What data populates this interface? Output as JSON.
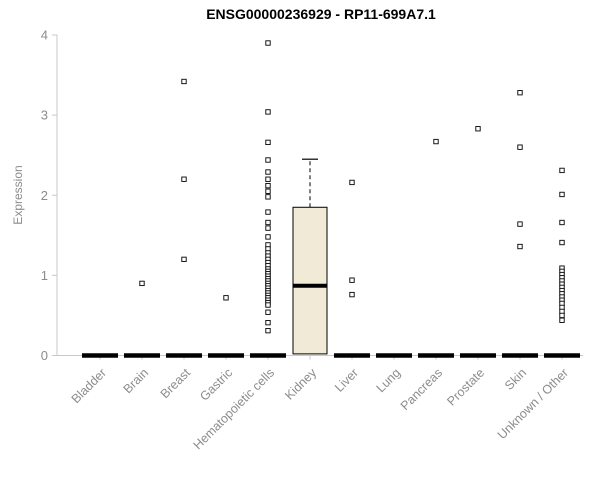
{
  "chart_data": {
    "type": "boxplot",
    "title": "ENSG00000236929 - RP11-699A7.1",
    "ylabel": "Expression",
    "xlabel": "",
    "ylim": [
      0,
      4
    ],
    "yticks": [
      0,
      1,
      2,
      3,
      4
    ],
    "grid": false,
    "legend": "none",
    "categories": [
      "Bladder",
      "Brain",
      "Breast",
      "Gastric",
      "Hematopoietic cells",
      "Kidney",
      "Liver",
      "Lung",
      "Pancreas",
      "Prostate",
      "Skin",
      "Unknown / Other"
    ],
    "boxes": [
      {
        "category": "Bladder",
        "q1": 0,
        "median": 0,
        "q3": 0,
        "whisker_low": 0,
        "whisker_high": 0,
        "outliers": []
      },
      {
        "category": "Brain",
        "q1": 0,
        "median": 0,
        "q3": 0,
        "whisker_low": 0,
        "whisker_high": 0,
        "outliers": [
          0.9
        ]
      },
      {
        "category": "Breast",
        "q1": 0,
        "median": 0,
        "q3": 0,
        "whisker_low": 0,
        "whisker_high": 0,
        "outliers": [
          3.42,
          2.2,
          1.2
        ]
      },
      {
        "category": "Gastric",
        "q1": 0,
        "median": 0,
        "q3": 0,
        "whisker_low": 0,
        "whisker_high": 0,
        "outliers": [
          0.72
        ]
      },
      {
        "category": "Hematopoietic cells",
        "q1": 0,
        "median": 0,
        "q3": 0,
        "whisker_low": 0,
        "whisker_high": 0,
        "outliers": [
          3.9,
          3.04,
          2.66,
          2.44,
          2.29,
          2.2,
          2.12,
          2.05,
          1.98,
          1.79,
          1.66,
          1.59,
          1.48,
          1.38,
          1.33,
          1.28,
          1.24,
          1.2,
          1.16,
          1.12,
          1.08,
          1.05,
          1.02,
          0.99,
          0.96,
          0.93,
          0.9,
          0.87,
          0.84,
          0.81,
          0.78,
          0.75,
          0.72,
          0.69,
          0.66,
          0.63,
          0.54,
          0.41,
          0.31
        ]
      },
      {
        "category": "Kidney",
        "q1": 0.02,
        "median": 0.87,
        "q3": 1.85,
        "whisker_low": 0.02,
        "whisker_high": 2.45,
        "outliers": []
      },
      {
        "category": "Liver",
        "q1": 0,
        "median": 0,
        "q3": 0,
        "whisker_low": 0,
        "whisker_high": 0,
        "outliers": [
          2.16,
          0.94,
          0.76
        ]
      },
      {
        "category": "Lung",
        "q1": 0,
        "median": 0,
        "q3": 0,
        "whisker_low": 0,
        "whisker_high": 0,
        "outliers": []
      },
      {
        "category": "Pancreas",
        "q1": 0,
        "median": 0,
        "q3": 0,
        "whisker_low": 0,
        "whisker_high": 0,
        "outliers": [
          2.67
        ]
      },
      {
        "category": "Prostate",
        "q1": 0,
        "median": 0,
        "q3": 0,
        "whisker_low": 0,
        "whisker_high": 0,
        "outliers": [
          2.83
        ]
      },
      {
        "category": "Skin",
        "q1": 0,
        "median": 0,
        "q3": 0,
        "whisker_low": 0,
        "whisker_high": 0,
        "outliers": [
          3.28,
          2.6,
          1.64,
          1.36
        ]
      },
      {
        "category": "Unknown / Other",
        "q1": 0,
        "median": 0,
        "q3": 0,
        "whisker_low": 0,
        "whisker_high": 0,
        "outliers": [
          2.31,
          2.01,
          1.66,
          1.41,
          1.09,
          1.05,
          1.01,
          0.97,
          0.93,
          0.89,
          0.85,
          0.81,
          0.77,
          0.73,
          0.69,
          0.65,
          0.6,
          0.55,
          0.5,
          0.44
        ]
      }
    ],
    "colors": {
      "box_fill": "#f0ead6",
      "box_stroke": "#000000",
      "median": "#000000",
      "outlier_stroke": "#000000",
      "outlier_fill": "#ffffff",
      "axis": "#c8c8c8",
      "tick_label": "#8c8c8c",
      "title": "#000000"
    }
  }
}
